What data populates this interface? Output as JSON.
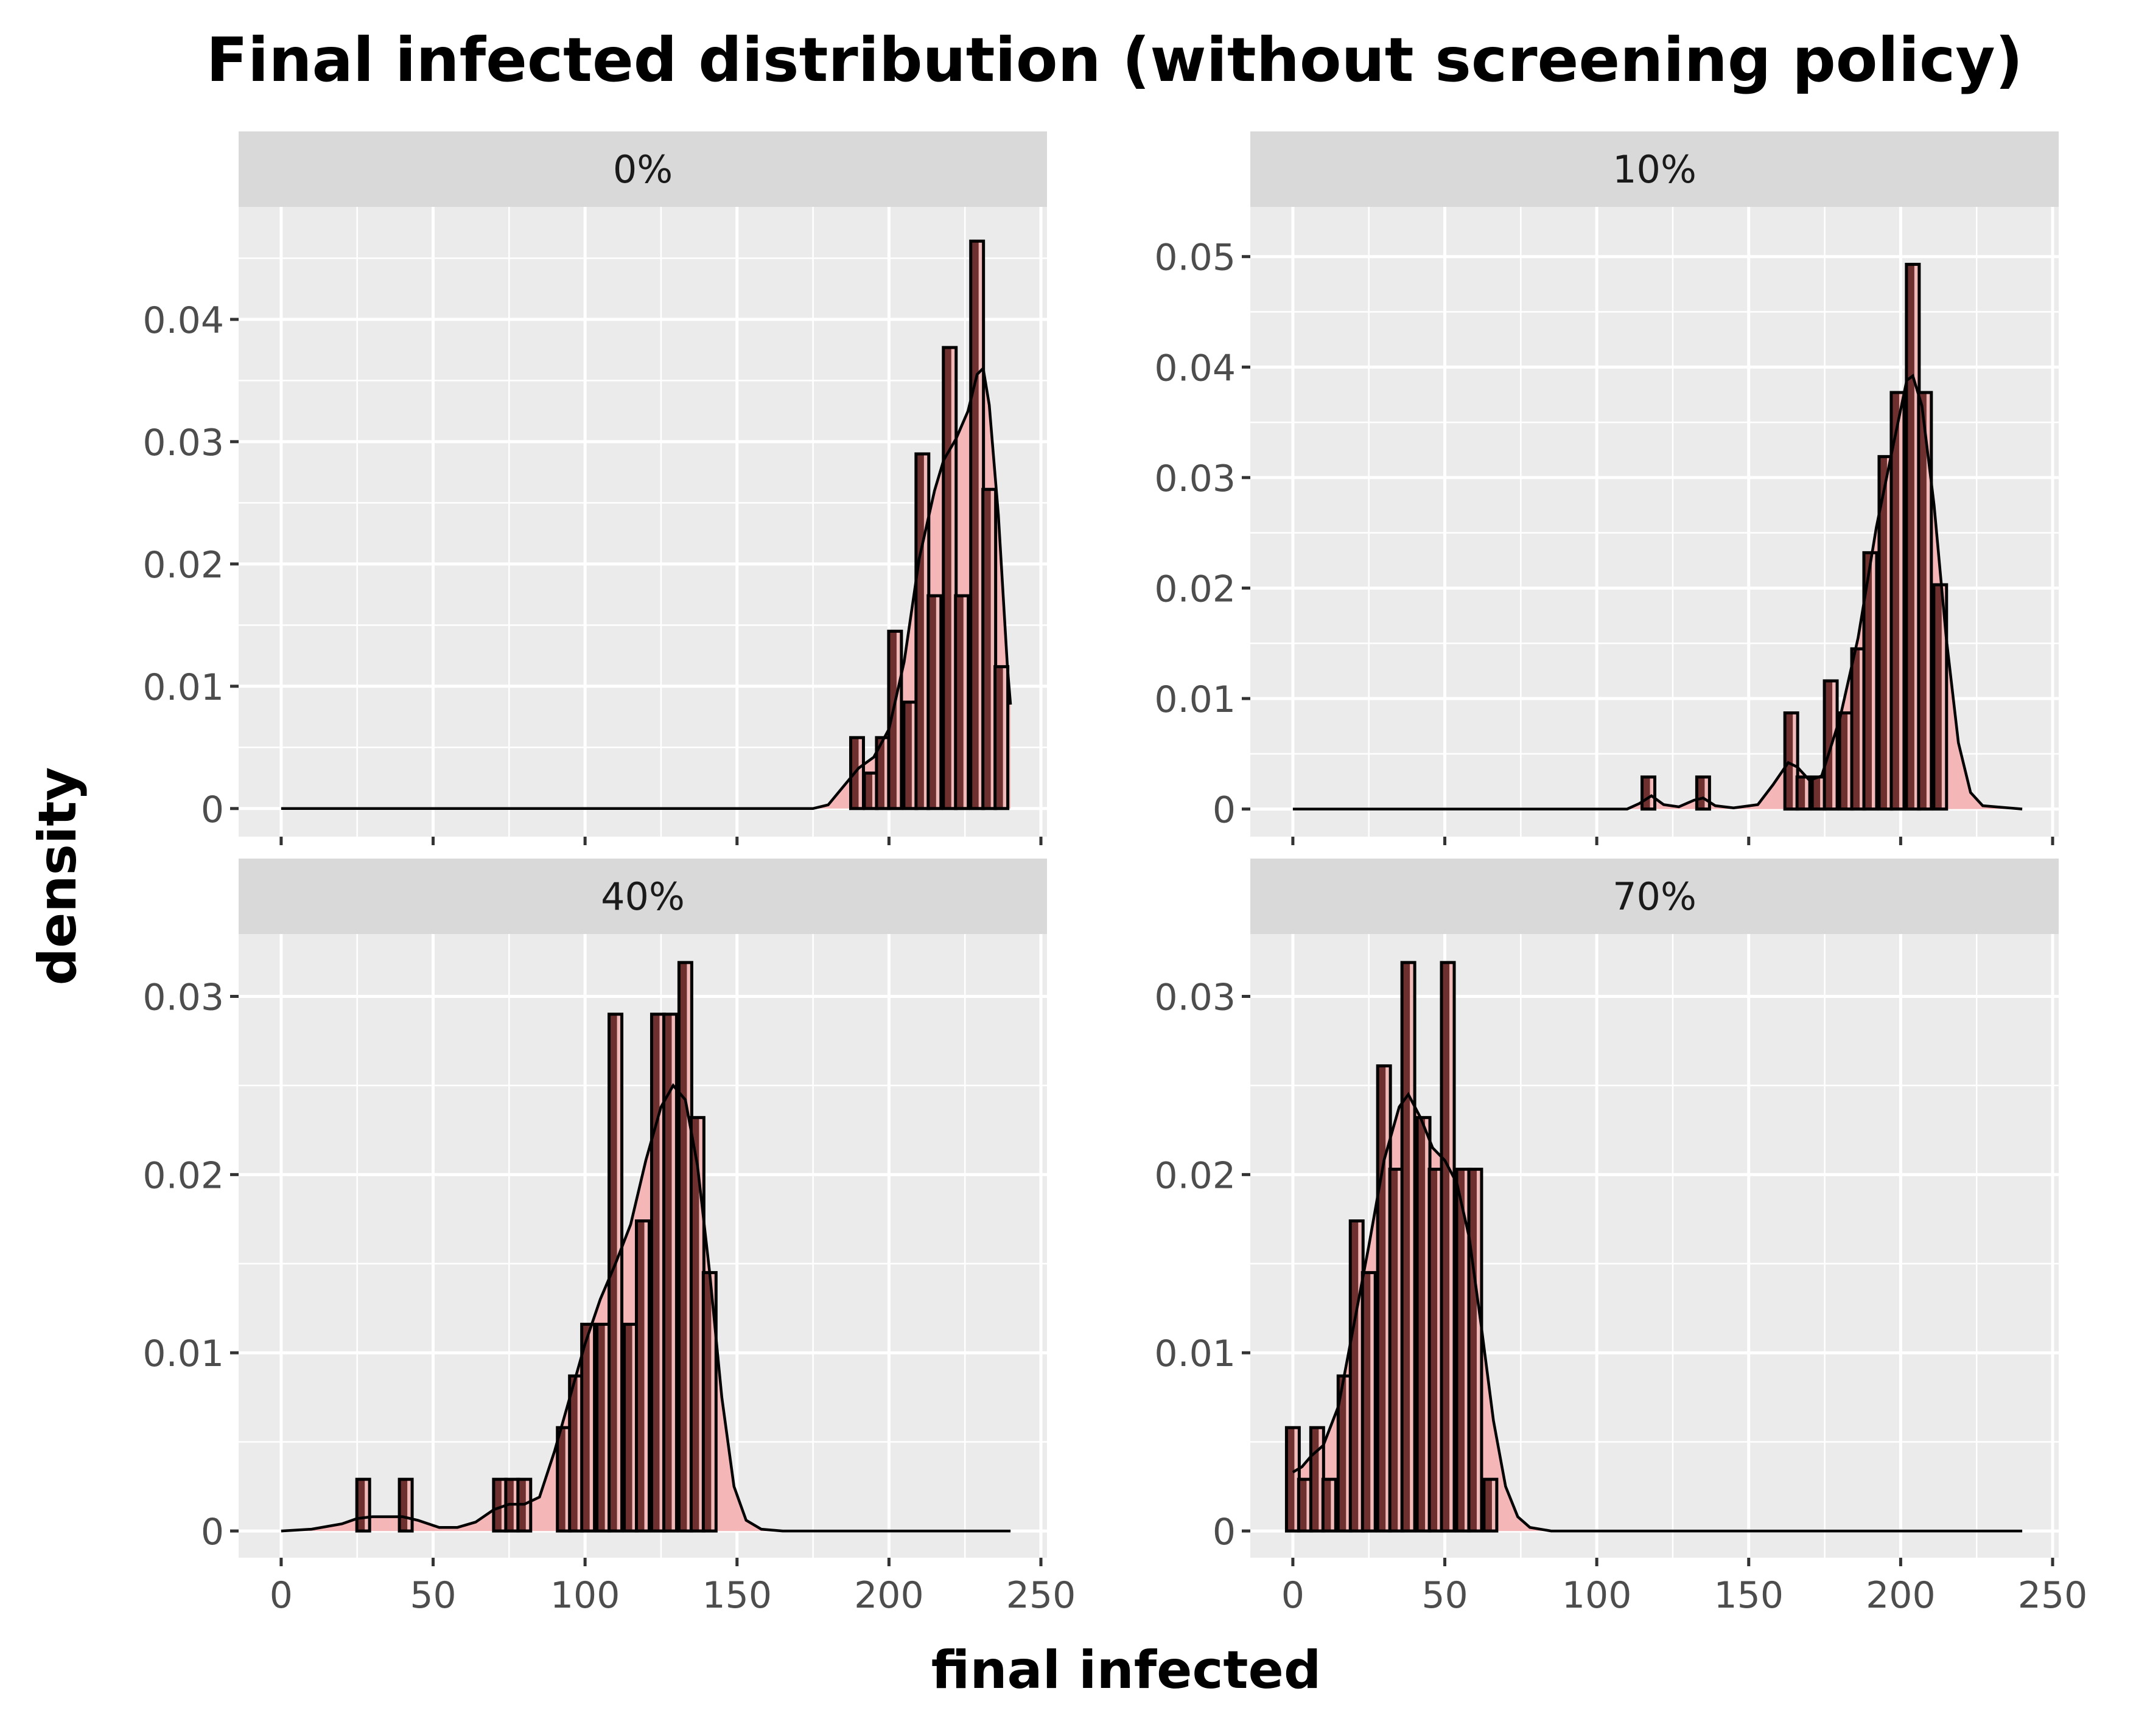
{
  "chart_data": {
    "type": "bar",
    "title": "Final infected distribution (without screening policy)",
    "xlabel": "final infected",
    "ylabel": "density",
    "overlay": "density curve",
    "colors": {
      "background": "#ebebeb",
      "strip": "#d9d9d9",
      "grid": "#ffffff",
      "bar_fill_light": "#f2b9b9",
      "bar_fill_dark": "#6e2f2f",
      "bar_outline": "#000000",
      "density_fill": "#f4b6b6",
      "density_line": "#000000"
    },
    "panels": [
      {
        "label": "0%",
        "xlim": [
          -14,
          252
        ],
        "x_ticks": [
          0,
          50,
          100,
          150,
          200,
          250
        ],
        "ylim": [
          -0.0023,
          0.0492
        ],
        "y_ticks": [
          0,
          0.01,
          0.02,
          0.03,
          0.04
        ],
        "y_tick_labels": [
          "0",
          "0.01",
          "0.02",
          "0.03",
          "0.04"
        ],
        "bars": [
          [
            189.5,
            0.0058
          ],
          [
            194,
            0.0029
          ],
          [
            198,
            0.0058
          ],
          [
            202,
            0.0145
          ],
          [
            207,
            0.0087
          ],
          [
            211,
            0.029
          ],
          [
            215,
            0.0174
          ],
          [
            220,
            0.0377
          ],
          [
            224,
            0.0174
          ],
          [
            229,
            0.0464
          ],
          [
            233,
            0.0261
          ],
          [
            237,
            0.0116
          ]
        ],
        "density": [
          [
            0,
            0
          ],
          [
            175,
            0
          ],
          [
            180,
            0.0003
          ],
          [
            185,
            0.0018
          ],
          [
            190,
            0.0033
          ],
          [
            195,
            0.0042
          ],
          [
            200,
            0.0065
          ],
          [
            205,
            0.012
          ],
          [
            210,
            0.0205
          ],
          [
            215,
            0.026
          ],
          [
            218,
            0.0285
          ],
          [
            222,
            0.0302
          ],
          [
            226,
            0.0325
          ],
          [
            229,
            0.0355
          ],
          [
            231,
            0.036
          ],
          [
            233,
            0.033
          ],
          [
            236,
            0.024
          ],
          [
            239,
            0.0115
          ],
          [
            240,
            0.0085
          ]
        ]
      },
      {
        "label": "10%",
        "xlim": [
          -14,
          252
        ],
        "x_ticks": [
          0,
          50,
          100,
          150,
          200,
          250
        ],
        "ylim": [
          -0.0025,
          0.0545
        ],
        "y_ticks": [
          0,
          0.01,
          0.02,
          0.03,
          0.04,
          0.05
        ],
        "y_tick_labels": [
          "0",
          "0.01",
          "0.02",
          "0.03",
          "0.04",
          "0.05"
        ],
        "bars": [
          [
            117,
            0.0029
          ],
          [
            135,
            0.0029
          ],
          [
            164,
            0.0087
          ],
          [
            168,
            0.0029
          ],
          [
            173,
            0.0029
          ],
          [
            177,
            0.0116
          ],
          [
            182,
            0.0087
          ],
          [
            186,
            0.0145
          ],
          [
            190,
            0.0232
          ],
          [
            195,
            0.0319
          ],
          [
            199,
            0.0377
          ],
          [
            204,
            0.0493
          ],
          [
            208,
            0.0377
          ],
          [
            213,
            0.0203
          ]
        ],
        "density": [
          [
            0,
            0
          ],
          [
            110,
            0
          ],
          [
            114,
            0.0005
          ],
          [
            118,
            0.0012
          ],
          [
            122,
            0.0004
          ],
          [
            127,
            0.0002
          ],
          [
            132,
            0.0008
          ],
          [
            135,
            0.001
          ],
          [
            139,
            0.0003
          ],
          [
            145,
            0.0001
          ],
          [
            153,
            0.0004
          ],
          [
            158,
            0.0022
          ],
          [
            163,
            0.0042
          ],
          [
            166,
            0.0038
          ],
          [
            170,
            0.0026
          ],
          [
            174,
            0.003
          ],
          [
            180,
            0.0082
          ],
          [
            186,
            0.0155
          ],
          [
            192,
            0.0255
          ],
          [
            198,
            0.0335
          ],
          [
            202,
            0.0388
          ],
          [
            204,
            0.0392
          ],
          [
            207,
            0.0365
          ],
          [
            211,
            0.0275
          ],
          [
            215,
            0.0155
          ],
          [
            219,
            0.006
          ],
          [
            223,
            0.0015
          ],
          [
            227,
            0.0003
          ],
          [
            240,
            0
          ]
        ]
      },
      {
        "label": "40%",
        "xlim": [
          -14,
          252
        ],
        "x_ticks": [
          0,
          50,
          100,
          150,
          200,
          250
        ],
        "ylim": [
          -0.0015,
          0.0335
        ],
        "y_ticks": [
          0,
          0.01,
          0.02,
          0.03
        ],
        "y_tick_labels": [
          "0",
          "0.01",
          "0.02",
          "0.03"
        ],
        "bars": [
          [
            27,
            0.0029
          ],
          [
            41,
            0.0029
          ],
          [
            72,
            0.0029
          ],
          [
            76,
            0.0029
          ],
          [
            80,
            0.0029
          ],
          [
            93,
            0.0058
          ],
          [
            97,
            0.0087
          ],
          [
            101,
            0.0116
          ],
          [
            106,
            0.0116
          ],
          [
            110,
            0.029
          ],
          [
            115,
            0.0116
          ],
          [
            119,
            0.0174
          ],
          [
            124,
            0.029
          ],
          [
            128,
            0.029
          ],
          [
            133,
            0.0319
          ],
          [
            137,
            0.0232
          ],
          [
            141,
            0.0145
          ]
        ],
        "density": [
          [
            0,
            0
          ],
          [
            10,
            0.0001
          ],
          [
            20,
            0.0004
          ],
          [
            25,
            0.0007
          ],
          [
            30,
            0.0008
          ],
          [
            40,
            0.0008
          ],
          [
            45,
            0.0006
          ],
          [
            52,
            0.0002
          ],
          [
            58,
            0.0002
          ],
          [
            64,
            0.0005
          ],
          [
            70,
            0.0012
          ],
          [
            75,
            0.0015
          ],
          [
            80,
            0.0015
          ],
          [
            85,
            0.0019
          ],
          [
            90,
            0.0045
          ],
          [
            95,
            0.0075
          ],
          [
            100,
            0.0105
          ],
          [
            105,
            0.013
          ],
          [
            110,
            0.015
          ],
          [
            115,
            0.0172
          ],
          [
            120,
            0.0208
          ],
          [
            125,
            0.0238
          ],
          [
            129,
            0.025
          ],
          [
            133,
            0.0242
          ],
          [
            137,
            0.0205
          ],
          [
            141,
            0.0145
          ],
          [
            145,
            0.0075
          ],
          [
            149,
            0.0025
          ],
          [
            153,
            0.0006
          ],
          [
            158,
            0.0001
          ],
          [
            165,
            0
          ],
          [
            240,
            0
          ]
        ]
      },
      {
        "label": "70%",
        "xlim": [
          -14,
          252
        ],
        "x_ticks": [
          0,
          50,
          100,
          150,
          200,
          250
        ],
        "ylim": [
          -0.0015,
          0.0335
        ],
        "y_ticks": [
          0,
          0.01,
          0.02,
          0.03
        ],
        "y_tick_labels": [
          "0",
          "0.01",
          "0.02",
          "0.03"
        ],
        "bars": [
          [
            0,
            0.0058
          ],
          [
            4,
            0.0029
          ],
          [
            8,
            0.0058
          ],
          [
            12,
            0.0029
          ],
          [
            17,
            0.0087
          ],
          [
            21,
            0.0174
          ],
          [
            25,
            0.0145
          ],
          [
            30,
            0.0261
          ],
          [
            34,
            0.0203
          ],
          [
            38,
            0.0319
          ],
          [
            43,
            0.0232
          ],
          [
            47,
            0.0203
          ],
          [
            51,
            0.0319
          ],
          [
            56,
            0.0203
          ],
          [
            60,
            0.0203
          ],
          [
            65,
            0.0029
          ]
        ],
        "density": [
          [
            0,
            0.0033
          ],
          [
            3,
            0.0036
          ],
          [
            6,
            0.0042
          ],
          [
            10,
            0.0048
          ],
          [
            15,
            0.007
          ],
          [
            20,
            0.0115
          ],
          [
            25,
            0.016
          ],
          [
            30,
            0.0208
          ],
          [
            35,
            0.0238
          ],
          [
            38,
            0.0245
          ],
          [
            42,
            0.0232
          ],
          [
            46,
            0.0215
          ],
          [
            50,
            0.0208
          ],
          [
            54,
            0.0195
          ],
          [
            58,
            0.0165
          ],
          [
            62,
            0.0115
          ],
          [
            66,
            0.0062
          ],
          [
            70,
            0.0025
          ],
          [
            74,
            0.0008
          ],
          [
            78,
            0.0002
          ],
          [
            85,
            0
          ],
          [
            240,
            0
          ]
        ]
      }
    ]
  }
}
